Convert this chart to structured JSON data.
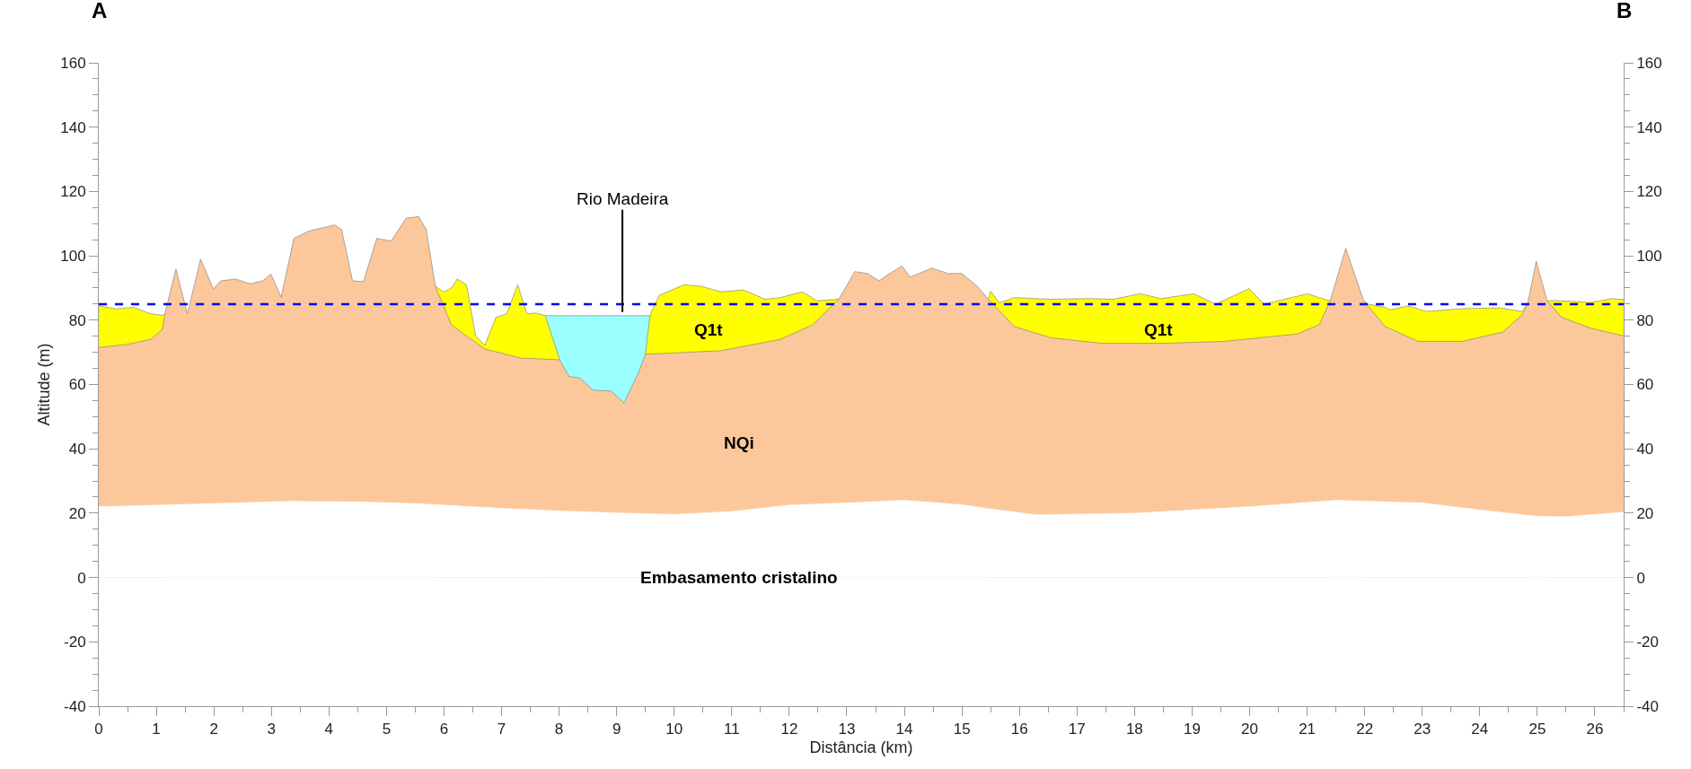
{
  "chart_data": {
    "type": "area",
    "xlabel": "Distância (km)",
    "ylabel": "Altitude (m)",
    "xlim": [
      0,
      26.5
    ],
    "xticks": [
      0,
      1,
      2,
      3,
      4,
      5,
      6,
      7,
      8,
      9,
      10,
      11,
      12,
      13,
      14,
      15,
      16,
      17,
      18,
      19,
      20,
      21,
      22,
      23,
      24,
      25,
      26
    ],
    "ylim": [
      -40,
      160
    ],
    "yticks": [
      -40,
      -20,
      0,
      20,
      40,
      60,
      80,
      100,
      120,
      140,
      160
    ],
    "y2lim": [
      -40,
      160
    ],
    "y2ticks": [
      -40,
      -20,
      0,
      20,
      40,
      60,
      80,
      100,
      120,
      140,
      160
    ],
    "series": [
      {
        "color": "#99ffff",
        "x": [
          7.76,
          9.58
        ],
        "values": [
          81.4,
          81.4
        ]
      },
      {
        "color": "#ffff00",
        "x": [
          0,
          0.3,
          0.6,
          0.9,
          1.1,
          1.15,
          null,
          5.85,
          6.0,
          6.13,
          6.23,
          6.39,
          6.55,
          6.71,
          6.9,
          7.09,
          7.28,
          7.44,
          7.6,
          7.76,
          8.01,
          null,
          9.5,
          9.58,
          9.74,
          10.17,
          10.48,
          10.81,
          11.2,
          11.58,
          11.84,
          12.22,
          12.4,
          12.47,
          12.86,
          null,
          15.46,
          15.5,
          15.65,
          15.91,
          16.55,
          17.18,
          17.63,
          18.1,
          18.46,
          19.03,
          19.41,
          19.99,
          20.25,
          21.01,
          21.21,
          21.4,
          null,
          21.98,
          22.05,
          22.36,
          22.43,
          22.75,
          22.93,
          23.07,
          23.71,
          24.35,
          24.73,
          24.83,
          null,
          25.17,
          25.29,
          25.42,
          25.93,
          26.3,
          26.5
        ],
        "values": [
          84.5,
          83.5,
          84,
          82,
          81.5,
          82,
          null,
          90.5,
          88.8,
          90,
          92.8,
          91,
          75.1,
          72.2,
          80.8,
          82,
          91,
          82,
          82.2,
          81.4,
          67.7,
          null,
          69.4,
          81.6,
          87.7,
          91,
          90.5,
          88.8,
          89.4,
          86.5,
          87,
          88.8,
          87,
          86,
          86.5,
          null,
          86.5,
          89,
          85.4,
          87,
          86.5,
          86.7,
          86.5,
          88.2,
          86.7,
          88.2,
          85,
          89.8,
          85,
          88.2,
          87,
          86,
          null,
          86.1,
          85,
          84,
          83.2,
          84.4,
          83.5,
          82.7,
          83.6,
          83.8,
          82.7,
          85,
          null,
          86,
          86.1,
          86,
          85.5,
          86.7,
          86.4
        ]
      },
      {
        "color": "#fcc89b",
        "x": [
          0,
          0.5,
          0.9,
          1.1,
          1.15,
          1.34,
          1.54,
          1.77,
          1.99,
          2.12,
          2.38,
          2.63,
          2.85,
          2.99,
          3.17,
          3.39,
          3.65,
          4.1,
          4.22,
          4.41,
          4.6,
          4.83,
          5.08,
          5.34,
          5.56,
          5.69,
          5.85,
          6.13,
          6.71,
          7.34,
          8.01,
          8.17,
          8.36,
          8.59,
          8.9,
          9.13,
          9.38,
          9.5,
          10.81,
          11.84,
          12.4,
          12.86,
          13.14,
          13.36,
          13.56,
          13.7,
          13.96,
          14.1,
          14.48,
          14.76,
          15.0,
          15.27,
          15.46,
          15.91,
          16.55,
          17.44,
          18.5,
          19.55,
          20.83,
          21.21,
          21.4,
          21.67,
          21.98,
          22.36,
          22.93,
          23.7,
          24.4,
          24.73,
          24.83,
          24.98,
          25.17,
          25.42,
          25.93,
          26.5
        ],
        "values": [
          71.5,
          72.5,
          74,
          77,
          82,
          95.9,
          82,
          99,
          89.7,
          92.2,
          92.8,
          91.3,
          92.2,
          94.3,
          87.1,
          105.4,
          107.7,
          109.6,
          108.2,
          92.2,
          92,
          105.4,
          104.6,
          111.7,
          112.2,
          108.2,
          90.5,
          78.5,
          71,
          68.2,
          67.7,
          62.5,
          62,
          58.2,
          58,
          54.3,
          63.7,
          69.4,
          70.5,
          74,
          78.5,
          86.5,
          95.1,
          94.5,
          92.2,
          94,
          96.8,
          93.4,
          96.2,
          94.5,
          94.5,
          90.5,
          86.5,
          78,
          74.5,
          72.8,
          72.8,
          73.4,
          75.7,
          78.6,
          86,
          102.3,
          86.1,
          78,
          73.4,
          73.4,
          76.3,
          81.5,
          85,
          98.3,
          86,
          80.9,
          77.5,
          75.1
        ]
      },
      {
        "color": "#ffffff",
        "x": [
          0,
          1,
          2,
          3.3,
          4.5,
          5.5,
          7,
          8,
          9.2,
          10,
          11,
          12,
          13,
          14,
          15,
          15.5,
          16.3,
          18,
          20,
          21.5,
          23,
          24,
          25,
          25.5,
          26.5
        ],
        "values": [
          22,
          22.5,
          23,
          23.7,
          23.5,
          23,
          21.5,
          20.7,
          20,
          19.6,
          20.5,
          22.5,
          23.2,
          24,
          22.6,
          21.3,
          19.5,
          20,
          22,
          24,
          23.2,
          21,
          19,
          18.9,
          20.3
        ]
      }
    ],
    "ref_lines": [
      {
        "axis": "y",
        "value": 85,
        "color": "#0000ff",
        "line_style": "dashed"
      }
    ],
    "annotations": [
      "A",
      "B",
      {
        "text": "Rio Madeira",
        "x": 9.1,
        "y": 81.4
      },
      "Q1t",
      "Q1t",
      "NQi",
      "Embasamento cristalino"
    ]
  }
}
